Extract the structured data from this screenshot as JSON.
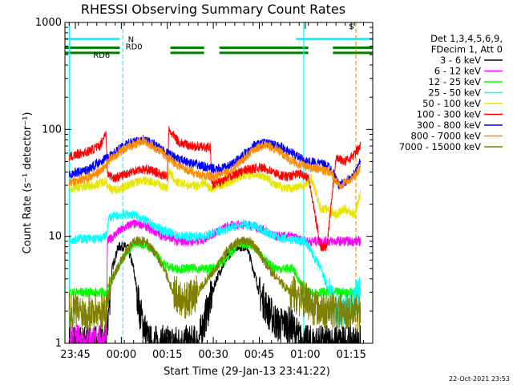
{
  "chart_data": {
    "type": "line",
    "title": "RHESSI Observing Summary Count Rates",
    "xlabel": "Start Time (29-Jan-13 23:41:22)",
    "ylabel": "Count Rate (s⁻¹ detector⁻¹)",
    "y_scale": "log",
    "ylim": [
      1,
      1000
    ],
    "xlim_minutes": [
      -3.4,
      97.0
    ],
    "x_ticks": [
      {
        "label": "23:45",
        "minutes": 0
      },
      {
        "label": "00:00",
        "minutes": 15
      },
      {
        "label": "00:15",
        "minutes": 30
      },
      {
        "label": "00:30",
        "minutes": 45
      },
      {
        "label": "00:45",
        "minutes": 60
      },
      {
        "label": "01:00",
        "minutes": 75
      },
      {
        "label": "01:15",
        "minutes": 90
      }
    ],
    "y_ticks": [
      {
        "label": "1",
        "value": 1
      },
      {
        "label": "10",
        "value": 10
      },
      {
        "label": "100",
        "value": 100
      },
      {
        "label": "1000",
        "value": 1000
      }
    ],
    "legend_header": [
      "Det 1,3,4,5,6,9,",
      "FDecim 1, Att 0"
    ],
    "legend_position": "right",
    "series": [
      {
        "name": "3 - 6 keV",
        "color": "#000000",
        "points": [
          [
            -2,
            1
          ],
          [
            10,
            1
          ],
          [
            12,
            5
          ],
          [
            14,
            8
          ],
          [
            17,
            8
          ],
          [
            19,
            5
          ],
          [
            21,
            2
          ],
          [
            24,
            1
          ],
          [
            40,
            1
          ],
          [
            43,
            2
          ],
          [
            46,
            4
          ],
          [
            49,
            6
          ],
          [
            52,
            8
          ],
          [
            56,
            8
          ],
          [
            58,
            5
          ],
          [
            60,
            3
          ],
          [
            63,
            2
          ],
          [
            66,
            1.5
          ],
          [
            70,
            1.5
          ],
          [
            74,
            1
          ],
          [
            90,
            1
          ],
          [
            93,
            1
          ]
        ]
      },
      {
        "name": "6 - 12 keV",
        "color": "#ff00ff",
        "points": [
          [
            -2,
            1
          ],
          [
            10,
            1
          ],
          [
            10.5,
            9
          ],
          [
            14,
            11
          ],
          [
            18,
            13
          ],
          [
            22,
            13
          ],
          [
            26,
            11
          ],
          [
            29,
            10
          ],
          [
            30,
            10
          ],
          [
            33,
            9
          ],
          [
            37,
            9
          ],
          [
            40,
            9
          ],
          [
            42,
            9.5
          ],
          [
            46,
            11
          ],
          [
            50,
            12.5
          ],
          [
            55,
            13
          ],
          [
            60,
            12
          ],
          [
            65,
            10
          ],
          [
            70,
            10
          ],
          [
            75,
            9
          ],
          [
            80,
            9
          ],
          [
            85,
            9
          ],
          [
            88,
            9
          ],
          [
            93,
            9
          ]
        ]
      },
      {
        "name": "12 - 25 keV",
        "color": "#00ff00",
        "points": [
          [
            -2,
            3
          ],
          [
            10,
            3
          ],
          [
            12,
            4
          ],
          [
            15,
            6
          ],
          [
            19,
            8.5
          ],
          [
            23,
            8.5
          ],
          [
            26,
            7
          ],
          [
            29,
            5.5
          ],
          [
            32,
            5
          ],
          [
            37,
            5
          ],
          [
            41,
            5
          ],
          [
            45,
            5
          ],
          [
            49,
            6
          ],
          [
            53,
            8.5
          ],
          [
            57,
            8.5
          ],
          [
            60,
            7
          ],
          [
            63,
            5.5
          ],
          [
            66,
            5
          ],
          [
            71,
            5
          ],
          [
            75,
            3
          ],
          [
            80,
            3
          ],
          [
            85,
            3
          ],
          [
            89,
            3
          ],
          [
            93,
            3
          ]
        ]
      },
      {
        "name": "25 - 50 keV",
        "color": "#00ffff",
        "points": [
          [
            -2,
            9.5
          ],
          [
            8,
            9.5
          ],
          [
            10,
            10
          ],
          [
            11,
            15
          ],
          [
            15,
            16
          ],
          [
            19,
            16
          ],
          [
            23,
            14
          ],
          [
            27,
            12
          ],
          [
            30,
            11
          ],
          [
            34,
            10
          ],
          [
            38,
            10
          ],
          [
            42,
            10
          ],
          [
            46,
            11
          ],
          [
            50,
            12
          ],
          [
            55,
            13
          ],
          [
            60,
            12
          ],
          [
            65,
            10
          ],
          [
            68,
            9.5
          ],
          [
            75,
            9
          ],
          [
            80,
            5
          ],
          [
            85,
            2
          ],
          [
            89,
            2
          ],
          [
            93,
            3
          ]
        ]
      },
      {
        "name": "50 - 100 keV",
        "color": "#e6e600",
        "points": [
          [
            -2,
            28
          ],
          [
            6,
            30
          ],
          [
            10,
            33
          ],
          [
            11,
            28
          ],
          [
            13,
            27
          ],
          [
            17,
            30
          ],
          [
            21,
            33
          ],
          [
            24,
            33
          ],
          [
            28,
            30
          ],
          [
            30,
            28
          ],
          [
            30.5,
            40
          ],
          [
            33,
            32
          ],
          [
            37,
            30
          ],
          [
            40,
            30
          ],
          [
            42,
            32
          ],
          [
            44,
            28
          ],
          [
            47,
            30
          ],
          [
            51,
            33
          ],
          [
            55,
            38
          ],
          [
            60,
            38
          ],
          [
            63,
            35
          ],
          [
            65,
            30
          ],
          [
            70,
            28
          ],
          [
            75,
            30
          ],
          [
            77,
            35
          ],
          [
            80,
            18
          ],
          [
            82,
            18
          ],
          [
            85,
            16
          ],
          [
            88,
            18
          ],
          [
            91,
            16
          ],
          [
            93,
            25
          ]
        ]
      },
      {
        "name": "100 - 300 keV",
        "color": "#ff0000",
        "points": [
          [
            -2,
            55
          ],
          [
            4,
            62
          ],
          [
            8,
            70
          ],
          [
            10,
            95
          ],
          [
            10.5,
            38
          ],
          [
            13,
            35
          ],
          [
            17,
            39
          ],
          [
            20,
            42
          ],
          [
            24,
            42
          ],
          [
            27,
            39
          ],
          [
            30,
            36
          ],
          [
            30.5,
            98
          ],
          [
            34,
            75
          ],
          [
            38,
            70
          ],
          [
            42,
            68
          ],
          [
            44,
            68
          ],
          [
            44.5,
            30
          ],
          [
            48,
            33
          ],
          [
            52,
            38
          ],
          [
            56,
            42
          ],
          [
            60,
            44
          ],
          [
            63,
            42
          ],
          [
            66,
            38
          ],
          [
            69,
            36
          ],
          [
            72,
            38
          ],
          [
            74,
            38
          ],
          [
            76,
            36
          ],
          [
            80,
            8
          ],
          [
            82,
            8
          ],
          [
            85,
            55
          ],
          [
            88,
            50
          ],
          [
            91,
            58
          ],
          [
            93,
            70
          ]
        ]
      },
      {
        "name": "300 - 800 keV",
        "color": "#0000ff",
        "points": [
          [
            -2,
            38
          ],
          [
            4,
            42
          ],
          [
            8,
            50
          ],
          [
            12,
            58
          ],
          [
            15,
            68
          ],
          [
            18,
            75
          ],
          [
            22,
            80
          ],
          [
            26,
            72
          ],
          [
            30,
            60
          ],
          [
            34,
            52
          ],
          [
            38,
            48
          ],
          [
            42,
            45
          ],
          [
            46,
            42
          ],
          [
            50,
            45
          ],
          [
            54,
            55
          ],
          [
            58,
            70
          ],
          [
            62,
            75
          ],
          [
            66,
            70
          ],
          [
            70,
            62
          ],
          [
            75,
            50
          ],
          [
            80,
            48
          ],
          [
            83,
            45
          ],
          [
            86,
            30
          ],
          [
            88,
            32
          ],
          [
            91,
            38
          ],
          [
            93,
            50
          ]
        ]
      },
      {
        "name": "800 - 7000 keV",
        "color": "#ff8c00",
        "points": [
          [
            -2,
            32
          ],
          [
            4,
            35
          ],
          [
            8,
            40
          ],
          [
            12,
            55
          ],
          [
            15,
            62
          ],
          [
            18,
            70
          ],
          [
            22,
            78
          ],
          [
            26,
            68
          ],
          [
            30,
            55
          ],
          [
            34,
            45
          ],
          [
            38,
            40
          ],
          [
            42,
            37
          ],
          [
            46,
            36
          ],
          [
            50,
            40
          ],
          [
            54,
            50
          ],
          [
            58,
            65
          ],
          [
            62,
            72
          ],
          [
            66,
            64
          ],
          [
            70,
            52
          ],
          [
            75,
            45
          ],
          [
            80,
            42
          ],
          [
            83,
            40
          ],
          [
            86,
            30
          ],
          [
            88,
            32
          ],
          [
            91,
            36
          ],
          [
            93,
            45
          ]
        ]
      },
      {
        "name": "7000 - 15000 keV",
        "color": "#808000",
        "points": [
          [
            -2,
            2
          ],
          [
            10,
            2
          ],
          [
            12,
            4
          ],
          [
            15,
            6
          ],
          [
            19,
            9
          ],
          [
            23,
            9
          ],
          [
            26,
            7
          ],
          [
            29,
            5
          ],
          [
            32,
            3
          ],
          [
            36,
            2.5
          ],
          [
            40,
            3
          ],
          [
            43,
            4
          ],
          [
            46,
            5
          ],
          [
            49,
            7
          ],
          [
            53,
            9
          ],
          [
            57,
            9
          ],
          [
            60,
            7
          ],
          [
            63,
            5
          ],
          [
            66,
            4
          ],
          [
            70,
            3
          ],
          [
            75,
            2.5
          ],
          [
            80,
            2
          ],
          [
            85,
            2
          ],
          [
            90,
            2
          ],
          [
            93,
            2
          ]
        ]
      }
    ],
    "annotations": [
      {
        "label": "N",
        "color": "#00ffff"
      },
      {
        "label": "RD0",
        "color": "#008000"
      },
      {
        "label": "RD6",
        "color": "#008000"
      },
      {
        "label": "S",
        "color": "#ff8c00"
      }
    ],
    "status_bars": [
      {
        "color": "#00ffff",
        "segments": [
          [
            -3.4,
            14.5
          ],
          [
            72,
            97
          ]
        ],
        "value": 700
      },
      {
        "color": "#008000",
        "segments": [
          [
            -3.4,
            14.5
          ],
          [
            31,
            42
          ],
          [
            47,
            76
          ],
          [
            84,
            97
          ]
        ],
        "value": 580
      },
      {
        "color": "#008000",
        "segments": [
          [
            -3.4,
            14.5
          ],
          [
            31,
            42
          ],
          [
            47,
            76
          ],
          [
            84,
            97
          ]
        ],
        "value": 520
      }
    ],
    "vertical_markers": [
      {
        "minutes": 15.5,
        "color": "#00ffff",
        "style": "dashed"
      },
      {
        "minutes": 74.5,
        "color": "#00ffff",
        "style": "solid"
      },
      {
        "minutes": 91.5,
        "color": "#ff8c00",
        "style": "dashed"
      },
      {
        "minutes": -2.0,
        "color": "#00ffff",
        "style": "solid"
      }
    ],
    "date_stamp": "22-Oct-2021 23:53"
  }
}
